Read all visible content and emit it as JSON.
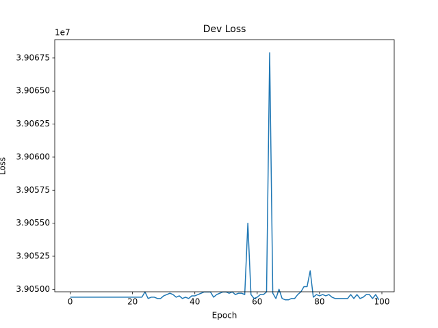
{
  "chart_data": {
    "type": "line",
    "title": "Dev Loss",
    "xlabel": "Epoch",
    "ylabel": "Loss",
    "y_offset_label": "1e7",
    "x": [
      0,
      1,
      2,
      3,
      4,
      5,
      6,
      7,
      8,
      9,
      10,
      11,
      12,
      13,
      14,
      15,
      16,
      17,
      18,
      19,
      20,
      21,
      22,
      23,
      24,
      25,
      26,
      27,
      28,
      29,
      30,
      31,
      32,
      33,
      34,
      35,
      36,
      37,
      38,
      39,
      40,
      41,
      42,
      43,
      44,
      45,
      46,
      47,
      48,
      49,
      50,
      51,
      52,
      53,
      54,
      55,
      56,
      57,
      58,
      59,
      60,
      61,
      62,
      63,
      64,
      65,
      66,
      67,
      68,
      69,
      70,
      71,
      72,
      73,
      74,
      75,
      76,
      77,
      78,
      79,
      80,
      81,
      82,
      83,
      84,
      85,
      86,
      87,
      88,
      89,
      90,
      91,
      92,
      93,
      94,
      95,
      96,
      97,
      98,
      99
    ],
    "series": [
      {
        "name": "Dev Loss",
        "color": "#1f77b4",
        "values": [
          3.90494,
          3.90494,
          3.90494,
          3.90494,
          3.90494,
          3.90494,
          3.90494,
          3.90494,
          3.90494,
          3.90494,
          3.90494,
          3.90494,
          3.90494,
          3.90494,
          3.90494,
          3.90494,
          3.90494,
          3.90494,
          3.90494,
          3.90494,
          3.90494,
          3.90494,
          3.90494,
          3.90494,
          3.90498,
          3.90493,
          3.90494,
          3.90494,
          3.90493,
          3.90493,
          3.90495,
          3.90496,
          3.90497,
          3.90496,
          3.90494,
          3.90495,
          3.90493,
          3.90494,
          3.90493,
          3.90495,
          3.90495,
          3.90496,
          3.90497,
          3.90498,
          3.90498,
          3.90498,
          3.90494,
          3.90496,
          3.90497,
          3.90498,
          3.90498,
          3.90497,
          3.90498,
          3.90496,
          3.90497,
          3.90497,
          3.90496,
          3.9055,
          3.90496,
          3.90493,
          3.90494,
          3.90496,
          3.90496,
          3.90498,
          3.90679,
          3.90497,
          3.90493,
          3.905,
          3.90493,
          3.90492,
          3.90492,
          3.90493,
          3.90493,
          3.90496,
          3.90498,
          3.90502,
          3.90502,
          3.90514,
          3.90494,
          3.90496,
          3.90495,
          3.90496,
          3.90495,
          3.90496,
          3.90494,
          3.90493,
          3.90493,
          3.90493,
          3.90493,
          3.90493,
          3.90496,
          3.90493,
          3.90496,
          3.90493,
          3.90494,
          3.90496,
          3.90496,
          3.90493,
          3.90496,
          3.90492
        ]
      }
    ],
    "xlim": [
      -4.95,
      103.95
    ],
    "xticks": [
      0,
      20,
      40,
      60,
      80,
      100
    ],
    "ylim": [
      3.904981,
      3.906889
    ],
    "yticks": [
      {
        "value": 3.905,
        "label": "3.90500"
      },
      {
        "value": 3.90525,
        "label": "3.90525"
      },
      {
        "value": 3.9055,
        "label": "3.90550"
      },
      {
        "value": 3.90575,
        "label": "3.90575"
      },
      {
        "value": 3.906,
        "label": "3.90600"
      },
      {
        "value": 3.90625,
        "label": "3.90625"
      },
      {
        "value": 3.9065,
        "label": "3.90650"
      },
      {
        "value": 3.90675,
        "label": "3.90675"
      }
    ],
    "grid": false
  }
}
